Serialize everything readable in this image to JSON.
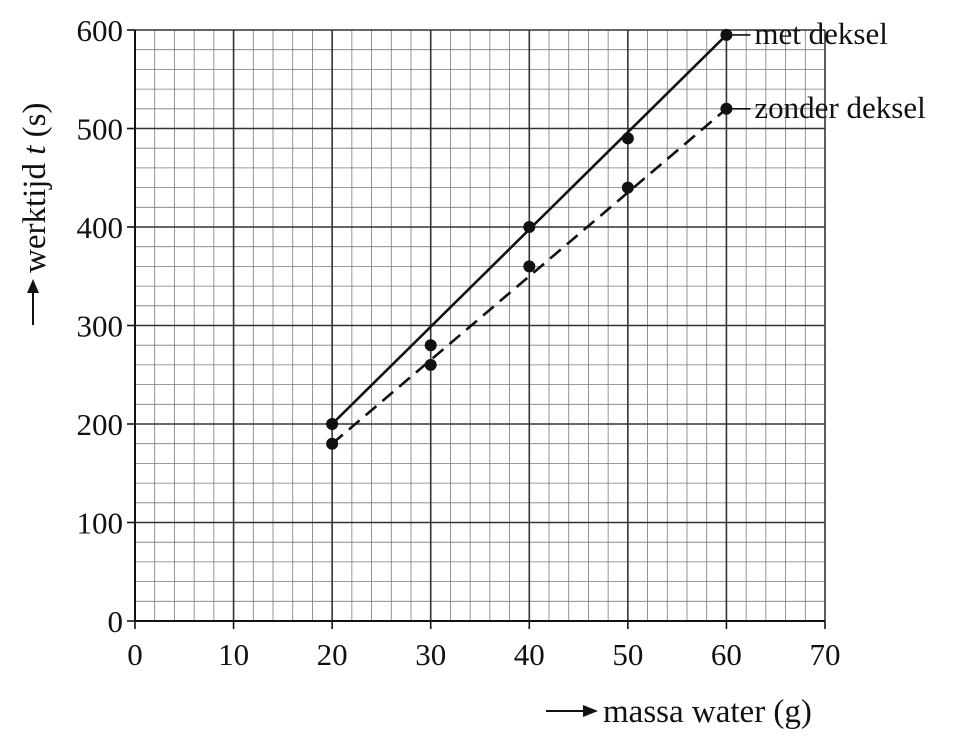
{
  "chart_data": {
    "type": "scatter",
    "title": "",
    "xlabel": "massa water (g)",
    "ylabel_prefix": "werktijd ",
    "ylabel_var": "t",
    "ylabel_unit": " (s)",
    "xlim": [
      0,
      70
    ],
    "ylim": [
      0,
      600
    ],
    "x_ticks": [
      0,
      10,
      20,
      30,
      40,
      50,
      60,
      70
    ],
    "y_ticks": [
      0,
      100,
      200,
      300,
      400,
      500,
      600
    ],
    "x_minor_step": 2,
    "y_minor_step": 20,
    "grid": true,
    "series": [
      {
        "name": "met deksel",
        "line_style": "solid",
        "x": [
          20,
          30,
          40,
          50,
          60
        ],
        "y": [
          200,
          280,
          400,
          490,
          595
        ],
        "fit_line": [
          [
            20,
            200
          ],
          [
            60,
            595
          ]
        ]
      },
      {
        "name": "zonder deksel",
        "line_style": "dashed",
        "x": [
          20,
          30,
          40,
          50,
          60
        ],
        "y": [
          180,
          260,
          360,
          440,
          520
        ],
        "fit_line": [
          [
            20,
            180
          ],
          [
            60,
            520
          ]
        ]
      }
    ]
  }
}
